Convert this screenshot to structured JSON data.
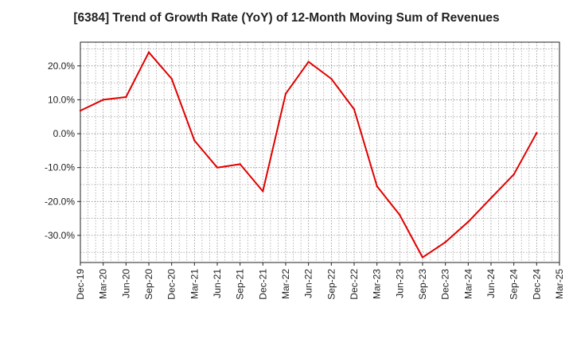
{
  "chart_data": {
    "type": "line",
    "title": "[6384]  Trend of Growth Rate (YoY) of 12-Month Moving Sum of Revenues",
    "xlabel": "",
    "ylabel": "",
    "ylim": [
      -38,
      27
    ],
    "y_ticks": [
      20,
      10,
      0,
      -10,
      -20,
      -30
    ],
    "y_tick_labels": [
      "20.0%",
      "10.0%",
      "0.0%",
      "-10.0%",
      "-20.0%",
      "-30.0%"
    ],
    "x_tick_labels": [
      "Dec-19",
      "Mar-20",
      "Jun-20",
      "Sep-20",
      "Dec-20",
      "Mar-21",
      "Jun-21",
      "Sep-21",
      "Dec-21",
      "Mar-22",
      "Jun-22",
      "Sep-22",
      "Dec-22",
      "Mar-23",
      "Jun-23",
      "Sep-23",
      "Dec-23",
      "Mar-24",
      "Jun-24",
      "Sep-24",
      "Dec-24",
      "Mar-25"
    ],
    "grid": true,
    "line_color": "#e00000",
    "x": [
      "Dec-19",
      "Mar-20",
      "Jun-20",
      "Sep-20",
      "Dec-20",
      "Mar-21",
      "Jun-21",
      "Sep-21",
      "Dec-21",
      "Mar-22",
      "Jun-22",
      "Sep-22",
      "Dec-22",
      "Mar-23",
      "Jun-23",
      "Sep-23",
      "Dec-23",
      "Mar-24",
      "Jun-24",
      "Sep-24",
      "Dec-24"
    ],
    "series": [
      {
        "values": [
          6.8,
          10.0,
          10.8,
          24.0,
          16.2,
          -2.0,
          -10.0,
          -9.0,
          -17.0,
          11.8,
          21.2,
          16.2,
          7.2,
          -15.5,
          -24.0,
          -36.5,
          -32.0,
          -26.0,
          -19.0,
          -12.0,
          0.2
        ]
      }
    ]
  }
}
